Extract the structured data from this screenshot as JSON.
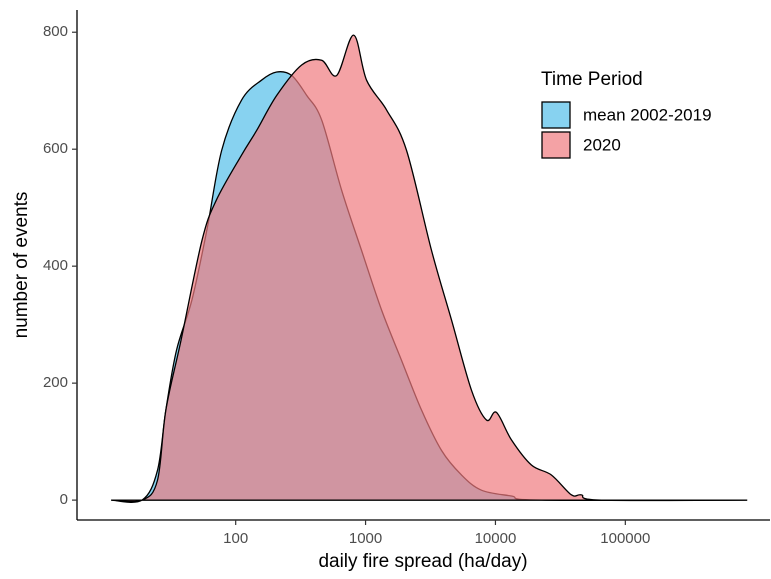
{
  "chart_data": {
    "type": "area",
    "x_label": "daily fire spread (ha/day)",
    "y_label": "number of events",
    "legend_title": "Time Period",
    "legend_position": "top-right",
    "x_log": true,
    "xlim": [
      6,
      1300000
    ],
    "xticks": [
      100,
      1000,
      10000,
      100000
    ],
    "ylim": [
      -34,
      838
    ],
    "yticks": [
      0,
      200,
      400,
      600,
      800
    ],
    "series": [
      {
        "name": "mean 2002-2019",
        "color": "#87d2f0",
        "x": [
          11,
          19,
          25,
          29,
          35,
          46,
          60,
          78,
          111,
          158,
          207,
          270,
          352,
          459,
          654,
          931,
          1328,
          1892,
          2696,
          3842,
          5475,
          7800,
          13280,
          22590,
          867000
        ],
        "values": [
          0,
          0,
          51,
          154,
          256,
          342,
          462,
          598,
          684,
          718,
          732,
          726,
          692,
          650,
          530,
          427,
          325,
          239,
          154,
          85,
          43,
          17,
          7,
          0,
          0
        ]
      },
      {
        "name": "2020",
        "color": "#f07a7f",
        "x": [
          11,
          19,
          25,
          29,
          38,
          55,
          71,
          111,
          145,
          207,
          322,
          459,
          599,
          809,
          1018,
          1452,
          2067,
          3219,
          4588,
          6536,
          8525,
          10180,
          13280,
          18920,
          26960,
          38440,
          45880,
          65360,
          867000
        ],
        "values": [
          0,
          0,
          34,
          154,
          274,
          444,
          513,
          590,
          632,
          692,
          744,
          752,
          726,
          795,
          718,
          667,
          598,
          427,
          308,
          188,
          137,
          150,
          103,
          60,
          43,
          9,
          9,
          0,
          0
        ]
      }
    ]
  }
}
